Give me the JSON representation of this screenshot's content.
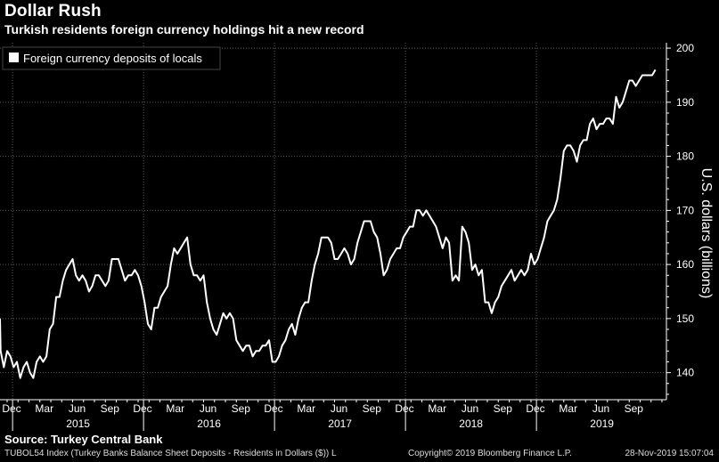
{
  "header": {
    "title": "Dollar Rush",
    "subtitle": "Turkish residents foreign currency holdings hit a new record"
  },
  "footer": {
    "source": "Source: Turkey Central Bank",
    "index_note": "TUBOL54 Index (Turkey Banks Balance Sheet Deposits - Residents in Dollars ($)) L",
    "copyright": "Copyright© 2019 Bloomberg Finance L.P.",
    "timestamp": "28-Nov-2019 15:07:04"
  },
  "colors": {
    "background": "#000000",
    "line": "#ffffff",
    "grid": "#555555"
  },
  "chart_data": {
    "type": "line",
    "title": "Dollar Rush",
    "subtitle": "Turkish residents foreign currency holdings hit a new record",
    "ylabel": "U.S. dollars (billions)",
    "ylim": [
      135,
      201
    ],
    "yticks": [
      140,
      150,
      160,
      170,
      180,
      190,
      200
    ],
    "grid": true,
    "legend": {
      "position": "top-left",
      "entries": [
        "Foreign currency deposits of locals"
      ]
    },
    "x_month_ticks": [
      {
        "label": "Dec",
        "t": 0
      },
      {
        "label": "Mar",
        "t": 3
      },
      {
        "label": "Jun",
        "t": 6
      },
      {
        "label": "Sep",
        "t": 9
      },
      {
        "label": "Dec",
        "t": 12
      },
      {
        "label": "Mar",
        "t": 15
      },
      {
        "label": "Jun",
        "t": 18
      },
      {
        "label": "Sep",
        "t": 21
      },
      {
        "label": "Dec",
        "t": 24
      },
      {
        "label": "Mar",
        "t": 27
      },
      {
        "label": "Jun",
        "t": 30
      },
      {
        "label": "Sep",
        "t": 33
      },
      {
        "label": "Dec",
        "t": 36
      },
      {
        "label": "Mar",
        "t": 39
      },
      {
        "label": "Jun",
        "t": 42
      },
      {
        "label": "Sep",
        "t": 45
      },
      {
        "label": "Dec",
        "t": 48
      },
      {
        "label": "Mar",
        "t": 51
      },
      {
        "label": "Jun",
        "t": 54
      },
      {
        "label": "Sep",
        "t": 57
      }
    ],
    "x_year_labels": [
      {
        "label": "2015",
        "t": 6.5
      },
      {
        "label": "2016",
        "t": 18.5
      },
      {
        "label": "2017",
        "t": 30.5
      },
      {
        "label": "2018",
        "t": 42.5
      },
      {
        "label": "2019",
        "t": 54.5
      }
    ],
    "x_year_dividers": [
      0.5,
      12.5,
      24.5,
      36.5,
      48.5
    ],
    "x_range": [
      0,
      60
    ],
    "series": [
      {
        "name": "Foreign currency deposits of locals",
        "points": [
          [
            -1.0,
            150
          ],
          [
            -0.6,
            144
          ],
          [
            -0.3,
            141
          ],
          [
            0.0,
            144
          ],
          [
            0.3,
            143
          ],
          [
            0.6,
            141
          ],
          [
            0.9,
            142
          ],
          [
            1.2,
            139
          ],
          [
            1.5,
            141
          ],
          [
            1.8,
            142
          ],
          [
            2.1,
            140
          ],
          [
            2.4,
            139
          ],
          [
            2.7,
            142
          ],
          [
            3.0,
            143
          ],
          [
            3.3,
            142
          ],
          [
            3.6,
            143
          ],
          [
            3.9,
            148
          ],
          [
            4.2,
            149
          ],
          [
            4.5,
            154
          ],
          [
            4.8,
            154
          ],
          [
            5.1,
            157
          ],
          [
            5.4,
            159
          ],
          [
            5.7,
            160
          ],
          [
            6.0,
            161
          ],
          [
            6.3,
            158
          ],
          [
            6.6,
            157
          ],
          [
            6.9,
            158
          ],
          [
            7.2,
            157
          ],
          [
            7.5,
            155
          ],
          [
            7.8,
            156
          ],
          [
            8.1,
            158
          ],
          [
            8.4,
            158
          ],
          [
            8.7,
            157
          ],
          [
            9.0,
            156
          ],
          [
            9.3,
            157
          ],
          [
            9.6,
            161
          ],
          [
            9.9,
            161
          ],
          [
            10.2,
            161
          ],
          [
            10.5,
            159
          ],
          [
            10.8,
            157
          ],
          [
            11.1,
            158
          ],
          [
            11.4,
            158
          ],
          [
            11.7,
            159
          ],
          [
            12.0,
            158
          ],
          [
            12.3,
            156
          ],
          [
            12.6,
            153
          ],
          [
            12.9,
            149
          ],
          [
            13.2,
            148
          ],
          [
            13.5,
            152
          ],
          [
            13.8,
            152
          ],
          [
            14.1,
            154
          ],
          [
            14.4,
            155
          ],
          [
            14.7,
            156
          ],
          [
            15.0,
            160
          ],
          [
            15.3,
            163
          ],
          [
            15.6,
            162
          ],
          [
            15.9,
            163
          ],
          [
            16.2,
            164
          ],
          [
            16.5,
            165
          ],
          [
            16.8,
            160
          ],
          [
            17.1,
            158
          ],
          [
            17.4,
            158
          ],
          [
            17.7,
            157
          ],
          [
            18.0,
            158
          ],
          [
            18.3,
            153
          ],
          [
            18.6,
            150
          ],
          [
            18.9,
            148
          ],
          [
            19.2,
            147
          ],
          [
            19.5,
            149
          ],
          [
            19.8,
            151
          ],
          [
            20.1,
            150
          ],
          [
            20.4,
            151
          ],
          [
            20.7,
            150
          ],
          [
            21.0,
            146
          ],
          [
            21.3,
            145
          ],
          [
            21.6,
            144
          ],
          [
            21.9,
            145
          ],
          [
            22.2,
            145
          ],
          [
            22.5,
            143
          ],
          [
            22.8,
            144
          ],
          [
            23.1,
            144
          ],
          [
            23.4,
            145
          ],
          [
            23.7,
            145
          ],
          [
            24.0,
            146
          ],
          [
            24.3,
            142
          ],
          [
            24.6,
            142
          ],
          [
            24.9,
            143
          ],
          [
            25.2,
            145
          ],
          [
            25.5,
            146
          ],
          [
            25.8,
            148
          ],
          [
            26.1,
            149
          ],
          [
            26.4,
            147
          ],
          [
            26.7,
            150
          ],
          [
            27.0,
            152
          ],
          [
            27.3,
            153
          ],
          [
            27.6,
            153
          ],
          [
            27.9,
            157
          ],
          [
            28.2,
            160
          ],
          [
            28.5,
            162
          ],
          [
            28.8,
            165
          ],
          [
            29.1,
            165
          ],
          [
            29.4,
            165
          ],
          [
            29.7,
            164
          ],
          [
            30.0,
            161
          ],
          [
            30.3,
            161
          ],
          [
            30.6,
            162
          ],
          [
            30.9,
            163
          ],
          [
            31.2,
            162
          ],
          [
            31.5,
            160
          ],
          [
            31.8,
            161
          ],
          [
            32.1,
            164
          ],
          [
            32.4,
            166
          ],
          [
            32.7,
            168
          ],
          [
            33.0,
            168
          ],
          [
            33.3,
            168
          ],
          [
            33.6,
            166
          ],
          [
            33.9,
            165
          ],
          [
            34.2,
            162
          ],
          [
            34.5,
            158
          ],
          [
            34.8,
            159
          ],
          [
            35.1,
            161
          ],
          [
            35.4,
            162
          ],
          [
            35.7,
            163
          ],
          [
            36.0,
            163
          ],
          [
            36.3,
            165
          ],
          [
            36.6,
            166
          ],
          [
            36.9,
            167
          ],
          [
            37.2,
            167
          ],
          [
            37.5,
            170
          ],
          [
            37.8,
            170
          ],
          [
            38.1,
            169
          ],
          [
            38.4,
            170
          ],
          [
            38.7,
            169
          ],
          [
            39.0,
            168
          ],
          [
            39.3,
            167
          ],
          [
            39.6,
            165
          ],
          [
            39.9,
            163
          ],
          [
            40.2,
            165
          ],
          [
            40.5,
            164
          ],
          [
            40.8,
            157
          ],
          [
            41.1,
            158
          ],
          [
            41.4,
            157
          ],
          [
            41.7,
            167
          ],
          [
            42.0,
            166
          ],
          [
            42.3,
            164
          ],
          [
            42.6,
            159
          ],
          [
            42.9,
            160
          ],
          [
            43.2,
            158
          ],
          [
            43.5,
            159
          ],
          [
            43.8,
            153
          ],
          [
            44.1,
            153
          ],
          [
            44.4,
            151
          ],
          [
            44.7,
            153
          ],
          [
            45.0,
            154
          ],
          [
            45.3,
            156
          ],
          [
            45.6,
            157
          ],
          [
            45.9,
            158
          ],
          [
            46.2,
            159
          ],
          [
            46.5,
            157
          ],
          [
            46.8,
            158
          ],
          [
            47.1,
            159
          ],
          [
            47.4,
            158
          ],
          [
            47.7,
            159
          ],
          [
            48.0,
            162
          ],
          [
            48.3,
            160
          ],
          [
            48.6,
            161
          ],
          [
            48.9,
            163
          ],
          [
            49.2,
            165
          ],
          [
            49.5,
            168
          ],
          [
            49.8,
            169
          ],
          [
            50.1,
            170
          ],
          [
            50.4,
            172
          ],
          [
            50.7,
            176
          ],
          [
            51.0,
            181
          ],
          [
            51.3,
            182
          ],
          [
            51.6,
            182
          ],
          [
            51.9,
            181
          ],
          [
            52.2,
            179
          ],
          [
            52.5,
            182
          ],
          [
            52.8,
            183
          ],
          [
            53.1,
            183
          ],
          [
            53.4,
            186
          ],
          [
            53.7,
            187
          ],
          [
            54.0,
            185
          ],
          [
            54.3,
            186
          ],
          [
            54.6,
            186
          ],
          [
            54.9,
            187
          ],
          [
            55.2,
            187
          ],
          [
            55.5,
            186
          ],
          [
            55.8,
            191
          ],
          [
            56.1,
            189
          ],
          [
            56.4,
            190
          ],
          [
            56.7,
            192
          ],
          [
            57.0,
            194
          ],
          [
            57.3,
            194
          ],
          [
            57.6,
            193
          ],
          [
            57.9,
            194
          ],
          [
            58.2,
            195
          ],
          [
            58.5,
            195
          ],
          [
            58.8,
            195
          ],
          [
            59.1,
            195
          ],
          [
            59.4,
            196
          ]
        ]
      }
    ]
  }
}
